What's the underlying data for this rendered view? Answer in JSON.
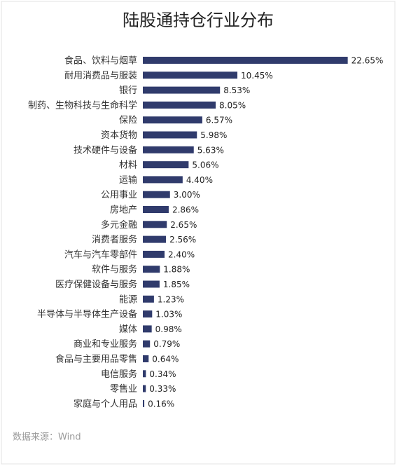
{
  "chart_data": {
    "type": "barh",
    "title": "陆股通持仓行业分布",
    "source": "数据来源：Wind",
    "categories": [
      "食品、饮料与烟草",
      "耐用消费品与服装",
      "银行",
      "制药、生物科技与生命科学",
      "保险",
      "资本货物",
      "技术硬件与设备",
      "材料",
      "运输",
      "公用事业",
      "房地产",
      "多元金融",
      "消费者服务",
      "汽车与汽车零部件",
      "软件与服务",
      "医疗保健设备与服务",
      "能源",
      "半导体与半导体生产设备",
      "媒体",
      "商业和专业服务",
      "食品与主要用品零售",
      "电信服务",
      "零售业",
      "家庭与个人用品"
    ],
    "values": [
      22.65,
      10.45,
      8.53,
      8.05,
      6.57,
      5.98,
      5.63,
      5.06,
      4.4,
      3.0,
      2.86,
      2.65,
      2.56,
      2.4,
      1.88,
      1.85,
      1.23,
      1.03,
      0.98,
      0.79,
      0.64,
      0.34,
      0.33,
      0.16
    ],
    "value_labels": [
      "22.65%",
      "10.45%",
      "8.53%",
      "8.05%",
      "6.57%",
      "5.98%",
      "5.63%",
      "5.06%",
      "4.40%",
      "3.00%",
      "2.86%",
      "2.65%",
      "2.56%",
      "2.40%",
      "1.88%",
      "1.85%",
      "1.23%",
      "1.03%",
      "0.98%",
      "0.79%",
      "0.64%",
      "0.34%",
      "0.33%",
      "0.16%"
    ],
    "color": "#303b6c",
    "xlim": [
      0,
      25
    ]
  }
}
